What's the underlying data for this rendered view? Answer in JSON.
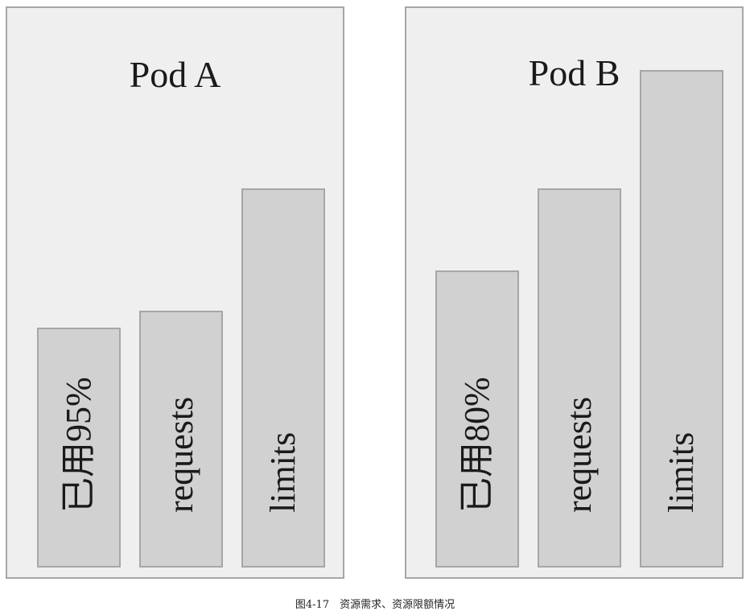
{
  "panels": [
    {
      "title": "Pod A",
      "bars": [
        {
          "label": "已用95%"
        },
        {
          "label": "requests"
        },
        {
          "label": "limits"
        }
      ]
    },
    {
      "title": "Pod B",
      "bars": [
        {
          "label": "已用80%"
        },
        {
          "label": "requests"
        },
        {
          "label": "limits"
        }
      ]
    }
  ],
  "caption": "图4-17　资源需求、资源限额情况"
}
